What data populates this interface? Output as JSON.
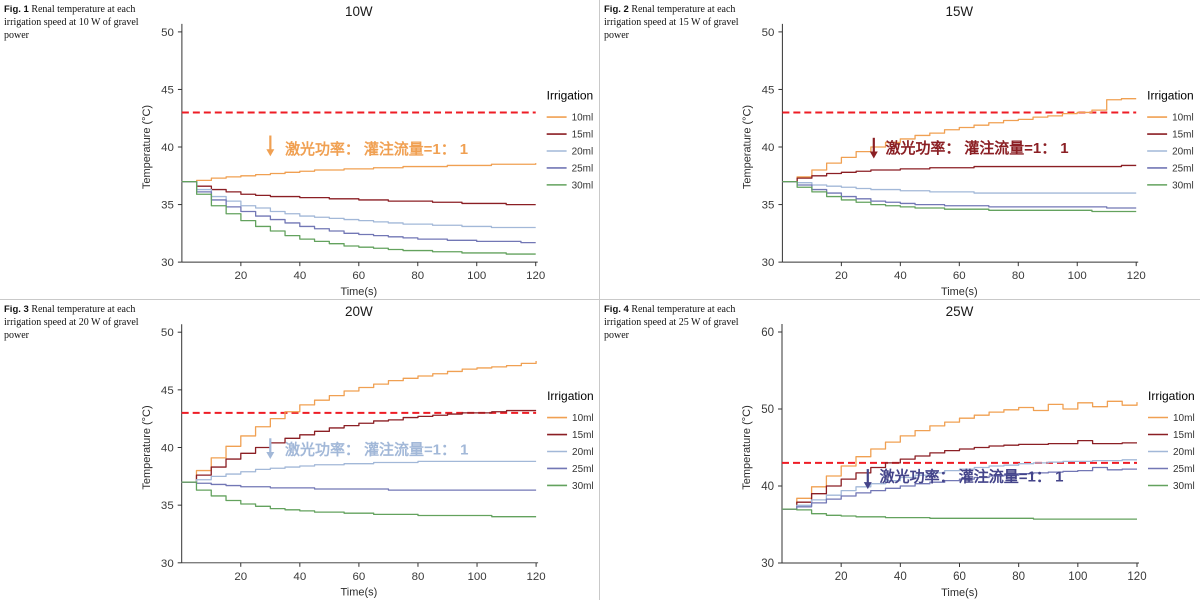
{
  "threshold_color": "#ee1c25",
  "chart_data": [
    {
      "type": "line",
      "fig_label": "Fig. 1",
      "caption": " Renal temperature at each irrigation speed at 10 W of gravel power",
      "title": "10W",
      "xlabel": "Time(s)",
      "ylabel": "Temperature (°C)",
      "legend_title": "Irrigation",
      "x_min": 0,
      "x_max": 120,
      "x_step": 5,
      "x_ticks": [
        20,
        40,
        60,
        80,
        100,
        120
      ],
      "y_min": 30,
      "y_max": 50,
      "y_ticks": [
        30,
        35,
        40,
        45,
        50
      ],
      "threshold": 43,
      "annotation": {
        "text": "激光功率： 灌注流量=1： 1",
        "color": "#f0a052",
        "arrow_x": 30,
        "arrow_top": 41.0,
        "arrow_bottom": 39.2,
        "text_x": 35,
        "text_y": 39.4
      },
      "series": [
        {
          "name": "10ml",
          "color": "#f0a052",
          "values": [
            37,
            37.1,
            37.3,
            37.4,
            37.5,
            37.6,
            37.7,
            37.8,
            37.9,
            38,
            38,
            38.1,
            38.1,
            38.2,
            38.2,
            38.3,
            38.3,
            38.3,
            38.4,
            38.4,
            38.4,
            38.5,
            38.5,
            38.5,
            38.6
          ]
        },
        {
          "name": "15ml",
          "color": "#8b1f24",
          "values": [
            37,
            36.6,
            36.3,
            36.1,
            35.9,
            35.8,
            35.7,
            35.7,
            35.6,
            35.6,
            35.5,
            35.5,
            35.4,
            35.4,
            35.3,
            35.3,
            35.3,
            35.2,
            35.2,
            35.1,
            35.1,
            35.1,
            35,
            35,
            35
          ]
        },
        {
          "name": "20ml",
          "color": "#a2b8d8",
          "values": [
            37,
            36.3,
            35.7,
            35.3,
            34.9,
            34.7,
            34.4,
            34.2,
            34,
            33.9,
            33.8,
            33.7,
            33.6,
            33.5,
            33.4,
            33.3,
            33.3,
            33.2,
            33.2,
            33.1,
            33.1,
            33,
            33,
            33,
            33
          ]
        },
        {
          "name": "25ml",
          "color": "#7277b5",
          "values": [
            37,
            36.1,
            35.4,
            34.8,
            34.4,
            34,
            33.7,
            33.4,
            33.1,
            32.9,
            32.7,
            32.5,
            32.4,
            32.3,
            32.2,
            32.1,
            32,
            32,
            31.9,
            31.9,
            31.8,
            31.8,
            31.8,
            31.7,
            31.7
          ]
        },
        {
          "name": "30ml",
          "color": "#63a25e",
          "values": [
            37,
            35.9,
            34.9,
            34.2,
            33.6,
            33.1,
            32.7,
            32.3,
            32,
            31.8,
            31.6,
            31.4,
            31.3,
            31.2,
            31.1,
            31,
            31,
            30.9,
            30.9,
            30.8,
            30.8,
            30.8,
            30.7,
            30.7,
            30.7
          ]
        }
      ]
    },
    {
      "type": "line",
      "fig_label": "Fig. 2",
      "caption": " Renal temperature at each irrigation speed at 15 W of gravel power",
      "title": "15W",
      "xlabel": "Time(s)",
      "ylabel": "Temperature (°C)",
      "legend_title": "Irrigation",
      "x_min": 0,
      "x_max": 120,
      "x_step": 5,
      "x_ticks": [
        20,
        40,
        60,
        80,
        100,
        120
      ],
      "y_min": 30,
      "y_max": 50,
      "y_ticks": [
        30,
        35,
        40,
        45,
        50
      ],
      "threshold": 43,
      "annotation": {
        "text": "激光功率： 灌注流量=1： 1",
        "color": "#8b1f24",
        "arrow_x": 31,
        "arrow_top": 40.8,
        "arrow_bottom": 39.0,
        "text_x": 35,
        "text_y": 39.5
      },
      "series": [
        {
          "name": "10ml",
          "color": "#f0a052",
          "values": [
            37,
            37.4,
            38,
            38.6,
            39.1,
            39.6,
            40,
            40.4,
            40.7,
            41,
            41.2,
            41.5,
            41.7,
            41.9,
            42.1,
            42.3,
            42.4,
            42.6,
            42.7,
            42.9,
            43,
            43.2,
            44.1,
            44.2,
            44.2
          ]
        },
        {
          "name": "15ml",
          "color": "#8b1f24",
          "values": [
            37,
            37.3,
            37.5,
            37.7,
            37.8,
            37.9,
            38,
            38,
            38.1,
            38.1,
            38.2,
            38.2,
            38.2,
            38.3,
            38.3,
            38.3,
            38.3,
            38.3,
            38.3,
            38.3,
            38.3,
            38.3,
            38.3,
            38.4,
            38.4
          ]
        },
        {
          "name": "20ml",
          "color": "#a2b8d8",
          "values": [
            37,
            36.9,
            36.7,
            36.6,
            36.5,
            36.4,
            36.3,
            36.3,
            36.2,
            36.2,
            36.1,
            36.1,
            36.1,
            36,
            36,
            36,
            36,
            36,
            36,
            36,
            36,
            36,
            36,
            36,
            36
          ]
        },
        {
          "name": "25ml",
          "color": "#7277b5",
          "values": [
            37,
            36.7,
            36.3,
            36,
            35.7,
            35.5,
            35.3,
            35.2,
            35.1,
            35,
            35,
            34.9,
            34.9,
            34.9,
            34.8,
            34.8,
            34.8,
            34.8,
            34.8,
            34.8,
            34.8,
            34.8,
            34.7,
            34.7,
            34.7
          ]
        },
        {
          "name": "30ml",
          "color": "#63a25e",
          "values": [
            37,
            36.5,
            36.1,
            35.7,
            35.4,
            35.2,
            35,
            34.9,
            34.8,
            34.7,
            34.7,
            34.6,
            34.6,
            34.6,
            34.5,
            34.5,
            34.5,
            34.5,
            34.5,
            34.5,
            34.5,
            34.4,
            34.4,
            34.4,
            34.4
          ]
        }
      ]
    },
    {
      "type": "line",
      "fig_label": "Fig. 3",
      "caption": " Renal temperature at each irrigation speed at 20 W of gravel power",
      "title": "20W",
      "xlabel": "Time(s)",
      "ylabel": "Temperature (°C)",
      "legend_title": "Irrigation",
      "x_min": 0,
      "x_max": 120,
      "x_step": 5,
      "x_ticks": [
        20,
        40,
        60,
        80,
        100,
        120
      ],
      "y_min": 30,
      "y_max": 50,
      "y_ticks": [
        30,
        35,
        40,
        45,
        50
      ],
      "threshold": 43,
      "annotation": {
        "text": "激光功率： 灌注流量=1： 1",
        "color": "#a2b8d8",
        "arrow_x": 30,
        "arrow_top": 40.8,
        "arrow_bottom": 39.0,
        "text_x": 35,
        "text_y": 39.4
      },
      "series": [
        {
          "name": "10ml",
          "color": "#f0a052",
          "values": [
            37,
            38,
            39.1,
            40.1,
            41,
            41.8,
            42.5,
            43.1,
            43.7,
            44.1,
            44.5,
            44.9,
            45.2,
            45.5,
            45.8,
            46,
            46.2,
            46.4,
            46.6,
            46.8,
            46.9,
            47,
            47.1,
            47.3,
            47.5
          ]
        },
        {
          "name": "15ml",
          "color": "#8b1f24",
          "values": [
            37,
            37.6,
            38.3,
            39,
            39.5,
            40,
            40.4,
            40.8,
            41.1,
            41.4,
            41.7,
            41.9,
            42.1,
            42.3,
            42.4,
            42.6,
            42.7,
            42.8,
            42.9,
            43,
            43,
            43.1,
            43.2,
            43.2,
            43.2
          ]
        },
        {
          "name": "20ml",
          "color": "#a2b8d8",
          "values": [
            37,
            37.2,
            37.5,
            37.7,
            37.9,
            38.1,
            38.2,
            38.3,
            38.4,
            38.5,
            38.5,
            38.6,
            38.6,
            38.7,
            38.7,
            38.7,
            38.8,
            38.8,
            38.8,
            38.8,
            38.8,
            38.8,
            38.8,
            38.8,
            38.8
          ]
        },
        {
          "name": "25ml",
          "color": "#7277b5",
          "values": [
            37,
            36.9,
            36.8,
            36.7,
            36.6,
            36.6,
            36.5,
            36.5,
            36.5,
            36.4,
            36.4,
            36.4,
            36.4,
            36.4,
            36.3,
            36.3,
            36.3,
            36.3,
            36.3,
            36.3,
            36.3,
            36.3,
            36.3,
            36.3,
            36.3
          ]
        },
        {
          "name": "30ml",
          "color": "#63a25e",
          "values": [
            37,
            36.3,
            35.8,
            35.4,
            35.1,
            34.9,
            34.7,
            34.6,
            34.5,
            34.4,
            34.4,
            34.3,
            34.3,
            34.2,
            34.2,
            34.2,
            34.1,
            34.1,
            34.1,
            34.1,
            34.1,
            34,
            34,
            34,
            34
          ]
        }
      ]
    },
    {
      "type": "line",
      "fig_label": "Fig. 4",
      "caption": " Renal temperature at each irrigation speed at 25 W of gravel power",
      "title": "25W",
      "xlabel": "Time(s)",
      "ylabel": "Temperature (°C)",
      "legend_title": "Irrigation",
      "x_min": 0,
      "x_max": 120,
      "x_step": 5,
      "x_ticks": [
        20,
        40,
        60,
        80,
        100,
        120
      ],
      "y_min": 30,
      "y_max": 60,
      "y_ticks": [
        30,
        40,
        50,
        60
      ],
      "threshold": 43,
      "annotation": {
        "text": "激光功率： 灌注流量=1： 1",
        "color": "#44448a",
        "arrow_x": 29,
        "arrow_top": 42.2,
        "arrow_bottom": 39.6,
        "text_x": 33,
        "text_y": 40.6
      },
      "series": [
        {
          "name": "10ml",
          "color": "#f0a052",
          "values": [
            37,
            38.4,
            39.9,
            41.3,
            42.6,
            43.8,
            44.8,
            45.7,
            46.5,
            47.2,
            47.8,
            48.3,
            48.8,
            49.2,
            49.6,
            49.9,
            50.2,
            49.8,
            50.6,
            50,
            50.8,
            50.3,
            51,
            50.5,
            50.9
          ]
        },
        {
          "name": "15ml",
          "color": "#8b1f24",
          "values": [
            37,
            37.9,
            39,
            40,
            40.9,
            41.7,
            42.4,
            43,
            43.5,
            43.9,
            44.3,
            44.6,
            44.8,
            45,
            45.2,
            45.3,
            45.4,
            45.4,
            45.5,
            45.5,
            45.9,
            45.5,
            45.5,
            45.6,
            45.6
          ]
        },
        {
          "name": "20ml",
          "color": "#a2b8d8",
          "values": [
            37,
            37.5,
            38.2,
            38.8,
            39.4,
            39.9,
            40.3,
            40.7,
            41.1,
            41.4,
            41.7,
            42,
            42.2,
            42.4,
            42.6,
            42.7,
            42.9,
            43,
            43.1,
            43.2,
            43.2,
            43.3,
            43.3,
            43.4,
            43.4
          ]
        },
        {
          "name": "25ml",
          "color": "#7277b5",
          "values": [
            37,
            37.3,
            37.8,
            38.3,
            38.7,
            39.1,
            39.4,
            39.7,
            40,
            40.3,
            40.5,
            40.7,
            40.9,
            41.1,
            41.3,
            41.4,
            41.6,
            41.7,
            41.8,
            41.9,
            42,
            42.4,
            42.1,
            42.2,
            42.2
          ]
        },
        {
          "name": "30ml",
          "color": "#63a25e",
          "values": [
            37,
            36.9,
            36.4,
            36.2,
            36.1,
            36,
            36,
            35.9,
            35.9,
            35.9,
            35.8,
            35.8,
            35.8,
            35.8,
            35.8,
            35.8,
            35.8,
            35.7,
            35.7,
            35.7,
            35.7,
            35.7,
            35.7,
            35.7,
            35.7
          ]
        }
      ]
    }
  ]
}
